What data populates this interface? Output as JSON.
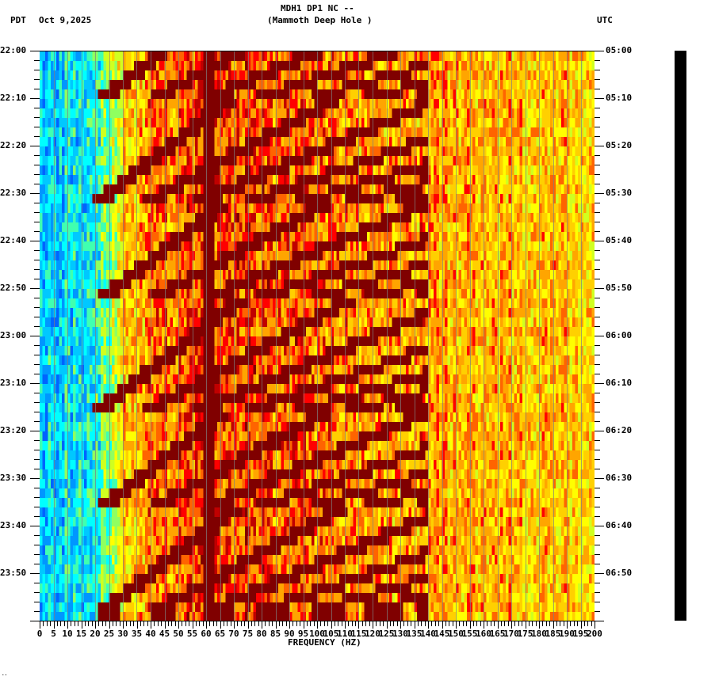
{
  "header": {
    "station_line": "MDH1 DP1 NC --",
    "site_name": "(Mammoth Deep Hole )",
    "left_tz": "PDT",
    "date": "Oct 9,2025",
    "right_tz": "UTC"
  },
  "footer": {
    "mark": ".."
  },
  "chart_data": {
    "type": "heatmap",
    "title": "MDH1 DP1 NC -- (Mammoth Deep Hole )",
    "subtitle": "Oct 9,2025",
    "xlabel": "FREQUENCY (HZ)",
    "ylabel_left": "PDT",
    "ylabel_right": "UTC",
    "xlim": [
      0,
      200
    ],
    "x_ticks": [
      0,
      5,
      10,
      15,
      20,
      25,
      30,
      35,
      40,
      45,
      50,
      55,
      60,
      65,
      70,
      75,
      80,
      85,
      90,
      95,
      100,
      105,
      110,
      115,
      120,
      125,
      130,
      135,
      140,
      145,
      150,
      155,
      160,
      165,
      170,
      175,
      180,
      185,
      190,
      195,
      200
    ],
    "y_ticks_left": [
      "22:00",
      "22:10",
      "22:20",
      "22:30",
      "22:40",
      "22:50",
      "23:00",
      "23:10",
      "23:20",
      "23:30",
      "23:40",
      "23:50"
    ],
    "y_ticks_right": [
      "05:00",
      "05:10",
      "05:20",
      "05:30",
      "05:40",
      "05:50",
      "06:00",
      "06:10",
      "06:20",
      "06:30",
      "06:40",
      "06:50"
    ],
    "time_range_local": [
      "22:00",
      "24:00"
    ],
    "time_range_utc": [
      "05:00",
      "07:00"
    ],
    "colormap": [
      "#0000ff",
      "#00bfff",
      "#00ffff",
      "#7fff7f",
      "#ffff00",
      "#ffa500",
      "#ff0000",
      "#800000"
    ],
    "features": {
      "low_freq_band_hz": [
        0,
        20
      ],
      "low_freq_color": "cyan/blue (low power)",
      "chirp_pattern": "repeating upward-sweeping harmonic arcs (dark red) roughly every ~21 minutes starting near 20-30 Hz",
      "chirp_restart_times_pdt": [
        "22:10",
        "22:31",
        "22:52",
        "23:15",
        "23:36",
        "23:58"
      ],
      "strong_line_hz": 60,
      "high_freq_color": "orange/yellow/red (moderate power)"
    },
    "grid": false,
    "legend": "none"
  },
  "colors": {
    "background": "#ffffff",
    "low_power": "#00c8ff",
    "high_power": "#800000",
    "mid_power": "#ffa500",
    "text": "#000000"
  }
}
